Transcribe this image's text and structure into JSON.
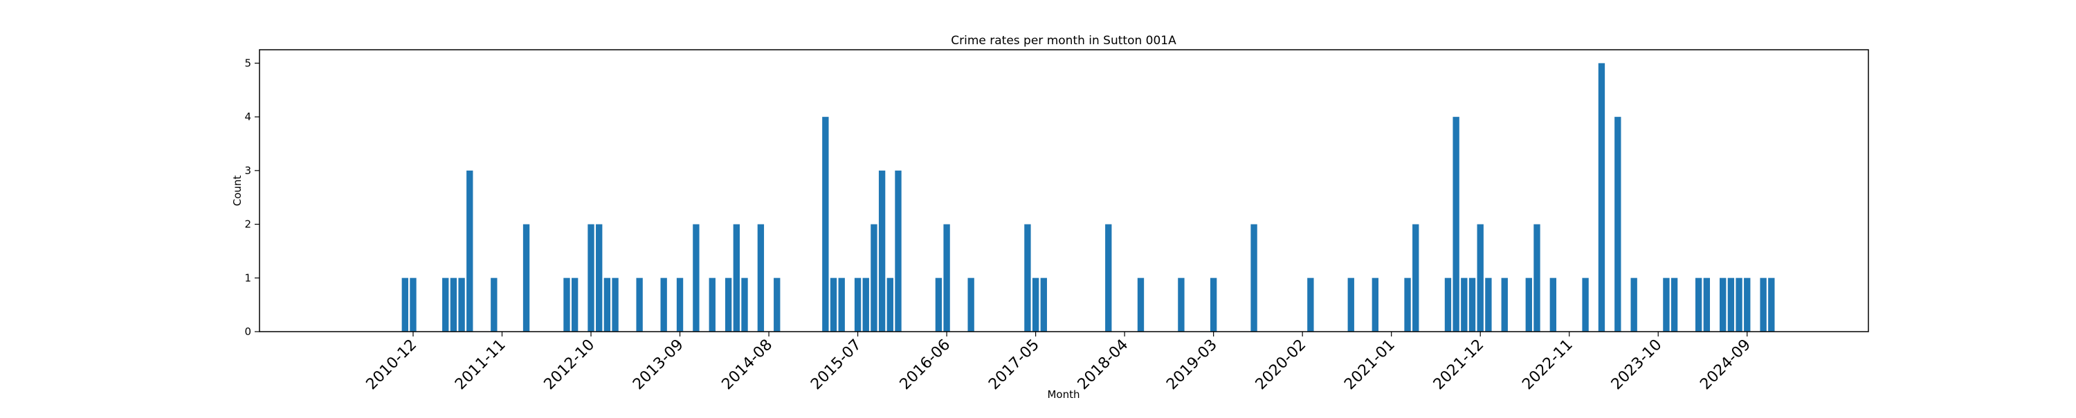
{
  "chart_data": {
    "type": "bar",
    "title": "Crime rates per month in Sutton 001A",
    "xlabel": "Month",
    "ylabel": "Count",
    "ylim": [
      0,
      5.25
    ],
    "yticks": [
      0,
      1,
      2,
      3,
      4,
      5
    ],
    "xlim": [
      "2009-05",
      "2025-12"
    ],
    "xticks": [
      "2010-12",
      "2011-11",
      "2012-10",
      "2013-09",
      "2014-08",
      "2015-07",
      "2016-06",
      "2017-05",
      "2018-04",
      "2019-03",
      "2020-02",
      "2021-01",
      "2021-12",
      "2022-11",
      "2023-10",
      "2024-09"
    ],
    "bar_color": "#1f77b4",
    "grid": false,
    "legend": "none",
    "x": [
      "2010-11",
      "2010-12",
      "2011-04",
      "2011-05",
      "2011-06",
      "2011-07",
      "2011-10",
      "2012-02",
      "2012-07",
      "2012-08",
      "2012-10",
      "2012-11",
      "2012-12",
      "2013-01",
      "2013-04",
      "2013-07",
      "2013-09",
      "2013-11",
      "2014-01",
      "2014-03",
      "2014-04",
      "2014-05",
      "2014-07",
      "2014-09",
      "2015-03",
      "2015-04",
      "2015-05",
      "2015-07",
      "2015-08",
      "2015-09",
      "2015-10",
      "2015-11",
      "2015-12",
      "2016-05",
      "2016-06",
      "2016-09",
      "2017-04",
      "2017-05",
      "2017-06",
      "2018-02",
      "2018-06",
      "2018-11",
      "2019-03",
      "2019-08",
      "2020-03",
      "2020-08",
      "2020-11",
      "2021-03",
      "2021-04",
      "2021-08",
      "2021-09",
      "2021-10",
      "2021-11",
      "2021-12",
      "2022-01",
      "2022-03",
      "2022-06",
      "2022-07",
      "2022-09",
      "2023-01",
      "2023-03",
      "2023-05",
      "2023-07",
      "2023-11",
      "2023-12",
      "2024-03",
      "2024-04",
      "2024-06",
      "2024-07",
      "2024-08",
      "2024-09",
      "2024-11",
      "2024-12"
    ],
    "values": [
      1,
      1,
      1,
      1,
      1,
      3,
      1,
      2,
      1,
      1,
      2,
      2,
      1,
      1,
      1,
      1,
      1,
      2,
      1,
      1,
      2,
      1,
      2,
      1,
      4,
      1,
      1,
      1,
      1,
      2,
      3,
      1,
      3,
      1,
      2,
      1,
      2,
      1,
      1,
      2,
      1,
      1,
      1,
      2,
      1,
      1,
      1,
      1,
      2,
      1,
      4,
      1,
      1,
      2,
      1,
      1,
      1,
      2,
      1,
      1,
      5,
      4,
      1,
      1,
      1,
      1,
      1,
      1,
      1,
      1,
      1,
      1,
      1
    ]
  }
}
